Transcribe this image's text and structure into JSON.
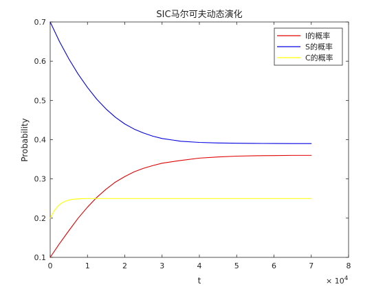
{
  "chart_data": {
    "type": "line",
    "title": "SIC马尔可夫动态演化",
    "xlabel": "t",
    "ylabel": "Probability",
    "x_exponent_label": "× 10^4",
    "xlim": [
      0,
      80000
    ],
    "ylim": [
      0.1,
      0.7
    ],
    "x_ticks": [
      0,
      10000,
      20000,
      30000,
      40000,
      50000,
      60000,
      70000,
      80000
    ],
    "x_tick_labels": [
      "0",
      "1",
      "2",
      "3",
      "4",
      "5",
      "6",
      "7",
      "8"
    ],
    "y_ticks": [
      0.1,
      0.2,
      0.3,
      0.4,
      0.5,
      0.6,
      0.7
    ],
    "y_tick_labels": [
      "0.1",
      "0.2",
      "0.3",
      "0.4",
      "0.5",
      "0.6",
      "0.7"
    ],
    "grid": false,
    "legend_position": "top-right",
    "series": [
      {
        "name": "I的概率",
        "color": "#e00000",
        "x": [
          0,
          2500,
          5000,
          7500,
          10000,
          12500,
          15000,
          17500,
          20000,
          22500,
          25000,
          27500,
          30000,
          35000,
          40000,
          45000,
          50000,
          55000,
          60000,
          65000,
          70000
        ],
        "y": [
          0.1,
          0.135,
          0.168,
          0.2,
          0.228,
          0.253,
          0.274,
          0.292,
          0.306,
          0.318,
          0.327,
          0.334,
          0.34,
          0.347,
          0.353,
          0.356,
          0.358,
          0.359,
          0.3595,
          0.36,
          0.36
        ]
      },
      {
        "name": "S的概率",
        "color": "#0000e0",
        "x": [
          0,
          2500,
          5000,
          7500,
          10000,
          12500,
          15000,
          17500,
          20000,
          22500,
          25000,
          27500,
          30000,
          35000,
          40000,
          45000,
          50000,
          55000,
          60000,
          65000,
          70000
        ],
        "y": [
          0.7,
          0.65,
          0.606,
          0.567,
          0.533,
          0.503,
          0.478,
          0.457,
          0.44,
          0.427,
          0.417,
          0.409,
          0.403,
          0.396,
          0.393,
          0.3915,
          0.391,
          0.3905,
          0.3902,
          0.39,
          0.39
        ]
      },
      {
        "name": "C的概率",
        "color": "#ffff00",
        "x": [
          0,
          1000,
          2000,
          3000,
          4000,
          5000,
          6000,
          8000,
          10000,
          12000,
          15000,
          20000,
          30000,
          40000,
          50000,
          60000,
          70000
        ],
        "y": [
          0.2,
          0.218,
          0.23,
          0.238,
          0.243,
          0.246,
          0.248,
          0.2495,
          0.25,
          0.25,
          0.25,
          0.25,
          0.25,
          0.25,
          0.25,
          0.25,
          0.25
        ]
      }
    ]
  }
}
